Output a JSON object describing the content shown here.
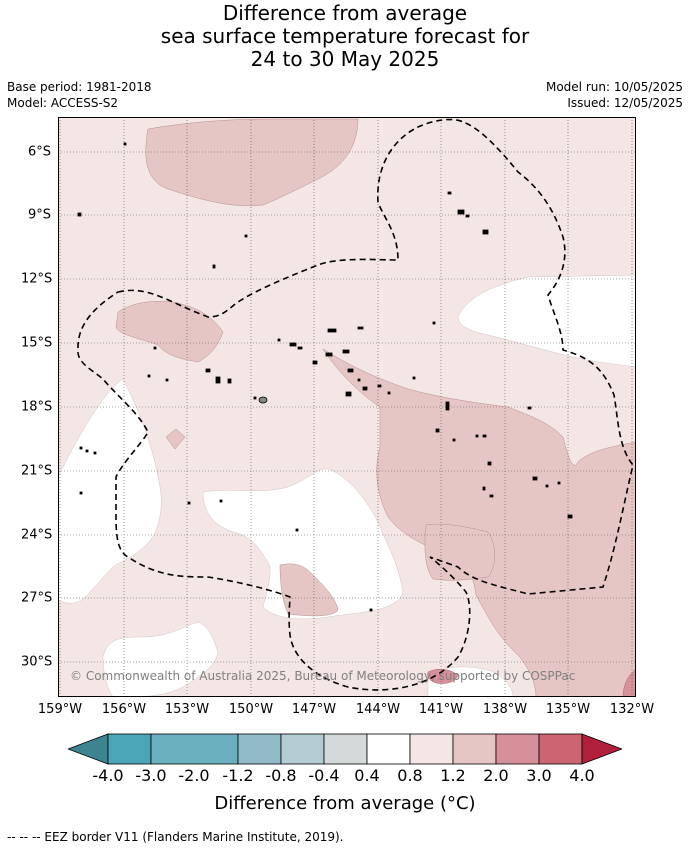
{
  "title": {
    "line1": "Difference from average",
    "line2": "sea surface temperature forecast for",
    "line3": "24 to 30 May 2025"
  },
  "meta": {
    "base_period": "Base period: 1981-2018",
    "model": "Model: ACCESS-S2",
    "model_run": "Model run: 10/05/2025",
    "issued": "Issued: 12/05/2025"
  },
  "map": {
    "lat_labels": [
      "6°S",
      "9°S",
      "12°S",
      "15°S",
      "18°S",
      "21°S",
      "24°S",
      "27°S",
      "30°S"
    ],
    "lon_labels": [
      "159°W",
      "156°W",
      "153°W",
      "150°W",
      "147°W",
      "144°W",
      "141°W",
      "138°W",
      "135°W",
      "132°W"
    ],
    "copyright": "© Commonwealth of Australia 2025, Bureau of Meteorology, supported by COSPPac",
    "colors": {
      "anom_0_4_0_8": "#f4e6e5",
      "anom_0_8_1_2": "#e6c6c4",
      "anom_1_2_2_0": "#d78f99",
      "neutral": "#ffffff"
    }
  },
  "colorbar": {
    "labels": [
      "-4.0",
      "-3.0",
      "-2.0",
      "-1.2",
      "-0.8",
      "-0.4",
      "0.4",
      "0.8",
      "1.2",
      "2.0",
      "3.0",
      "4.0"
    ],
    "colors": [
      "#3c8490",
      "#4aa5b6",
      "#6bb0be",
      "#8fbcc6",
      "#b3ced2",
      "#d4d9da",
      "#ffffff",
      "#f4e6e5",
      "#e6c6c4",
      "#d78f99",
      "#cc6571",
      "#c24a59",
      "#b01f3b"
    ],
    "title": "Difference from average (°C)"
  },
  "footnote": "--  --  -- EEZ border V11 (Flanders Marine Institute, 2019)."
}
